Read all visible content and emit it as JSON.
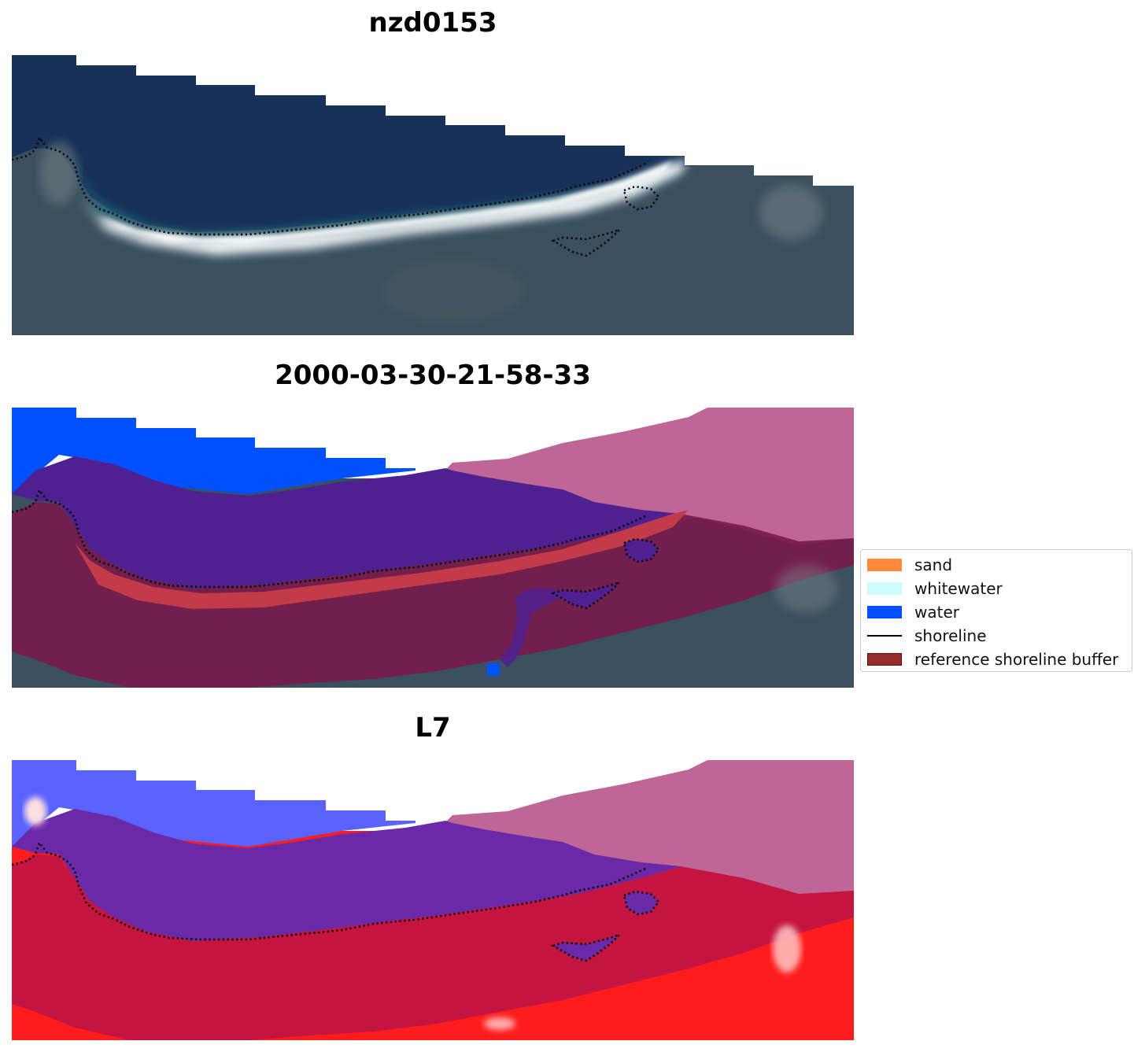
{
  "panels": [
    {
      "title": "nzd0153"
    },
    {
      "title": "2000-03-30-21-58-33"
    },
    {
      "title": "L7"
    }
  ],
  "legend": {
    "items": [
      {
        "label": "sand",
        "color": "#ff8a3d"
      },
      {
        "label": "whitewater",
        "color": "#ccfbfb"
      },
      {
        "label": "water",
        "color": "#0050ff"
      },
      {
        "label": "shoreline",
        "color": "#000000"
      },
      {
        "label": "reference shoreline buffer",
        "color": "#962b2b"
      }
    ]
  },
  "colors": {
    "ocean": "#163057",
    "land": "#3b5160",
    "surf": "#e8f2f2",
    "water_class": "#0050ff",
    "buffer": "#8c1a45",
    "mask_pink": "#bd6695",
    "purple": "#4f2090",
    "red_class": "#c23a45",
    "l7_red": "#ff1a1a",
    "l7_crimson": "#c4123f"
  }
}
